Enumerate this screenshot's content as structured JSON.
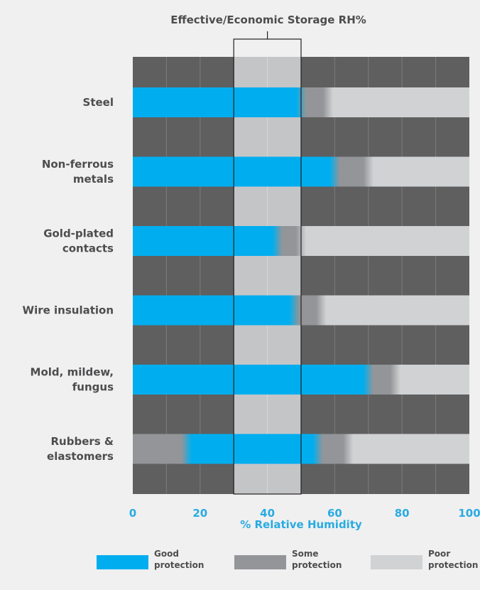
{
  "chart_data": {
    "type": "bar",
    "title": "Effective/Economic Storage RH%",
    "xlabel": "% Relative Humidity",
    "ylabel": "",
    "xlim": [
      0,
      100
    ],
    "x_ticks": [
      "0",
      "20",
      "40",
      "60",
      "80",
      "100"
    ],
    "grid": true,
    "highlight_band": [
      30,
      50
    ],
    "legend_position": "bottom",
    "legend": [
      {
        "key": "good",
        "line1": "Good",
        "line2": "protection",
        "color": "#00aeef"
      },
      {
        "key": "some",
        "line1": "Some",
        "line2": "protection",
        "color": "#939598"
      },
      {
        "key": "poor",
        "line1": "Poor",
        "line2": "protection",
        "color": "#d1d2d4"
      }
    ],
    "categories": [
      {
        "label": [
          "Steel"
        ],
        "segments": [
          {
            "from": 0,
            "to": 50,
            "level": "good"
          },
          {
            "from": 50,
            "to": 58,
            "level": "some"
          },
          {
            "from": 58,
            "to": 100,
            "level": "poor"
          }
        ]
      },
      {
        "label": [
          "Non-ferrous",
          "metals"
        ],
        "segments": [
          {
            "from": 0,
            "to": 60,
            "level": "good"
          },
          {
            "from": 60,
            "to": 70,
            "level": "some"
          },
          {
            "from": 70,
            "to": 100,
            "level": "poor"
          }
        ]
      },
      {
        "label": [
          "Gold-plated",
          "contacts"
        ],
        "segments": [
          {
            "from": 0,
            "to": 43,
            "level": "good"
          },
          {
            "from": 43,
            "to": 50,
            "level": "some"
          },
          {
            "from": 50,
            "to": 100,
            "level": "poor"
          }
        ]
      },
      {
        "label": [
          "Wire insulation"
        ],
        "segments": [
          {
            "from": 0,
            "to": 48,
            "level": "good"
          },
          {
            "from": 48,
            "to": 56,
            "level": "some"
          },
          {
            "from": 56,
            "to": 100,
            "level": "poor"
          }
        ]
      },
      {
        "label": [
          "Mold, mildew,",
          "fungus"
        ],
        "segments": [
          {
            "from": 0,
            "to": 70,
            "level": "good"
          },
          {
            "from": 70,
            "to": 78,
            "level": "some"
          },
          {
            "from": 78,
            "to": 100,
            "level": "poor"
          }
        ]
      },
      {
        "label": [
          "Rubbers &",
          "elastomers"
        ],
        "segments": [
          {
            "from": 0,
            "to": 16,
            "level": "some"
          },
          {
            "from": 16,
            "to": 55,
            "level": "good"
          },
          {
            "from": 55,
            "to": 64,
            "level": "some"
          },
          {
            "from": 64,
            "to": 100,
            "level": "poor"
          }
        ]
      }
    ]
  },
  "colors": {
    "background": "#f0f0f0",
    "plot_dark": "#5f5f5f",
    "grid_line": "#7c7c7c",
    "band_light": "#c4c5c7",
    "band_grid": "#d6d7d9",
    "label_text": "#4d4d4f",
    "axis_text": "#29abe2",
    "outline": "#231f20"
  }
}
